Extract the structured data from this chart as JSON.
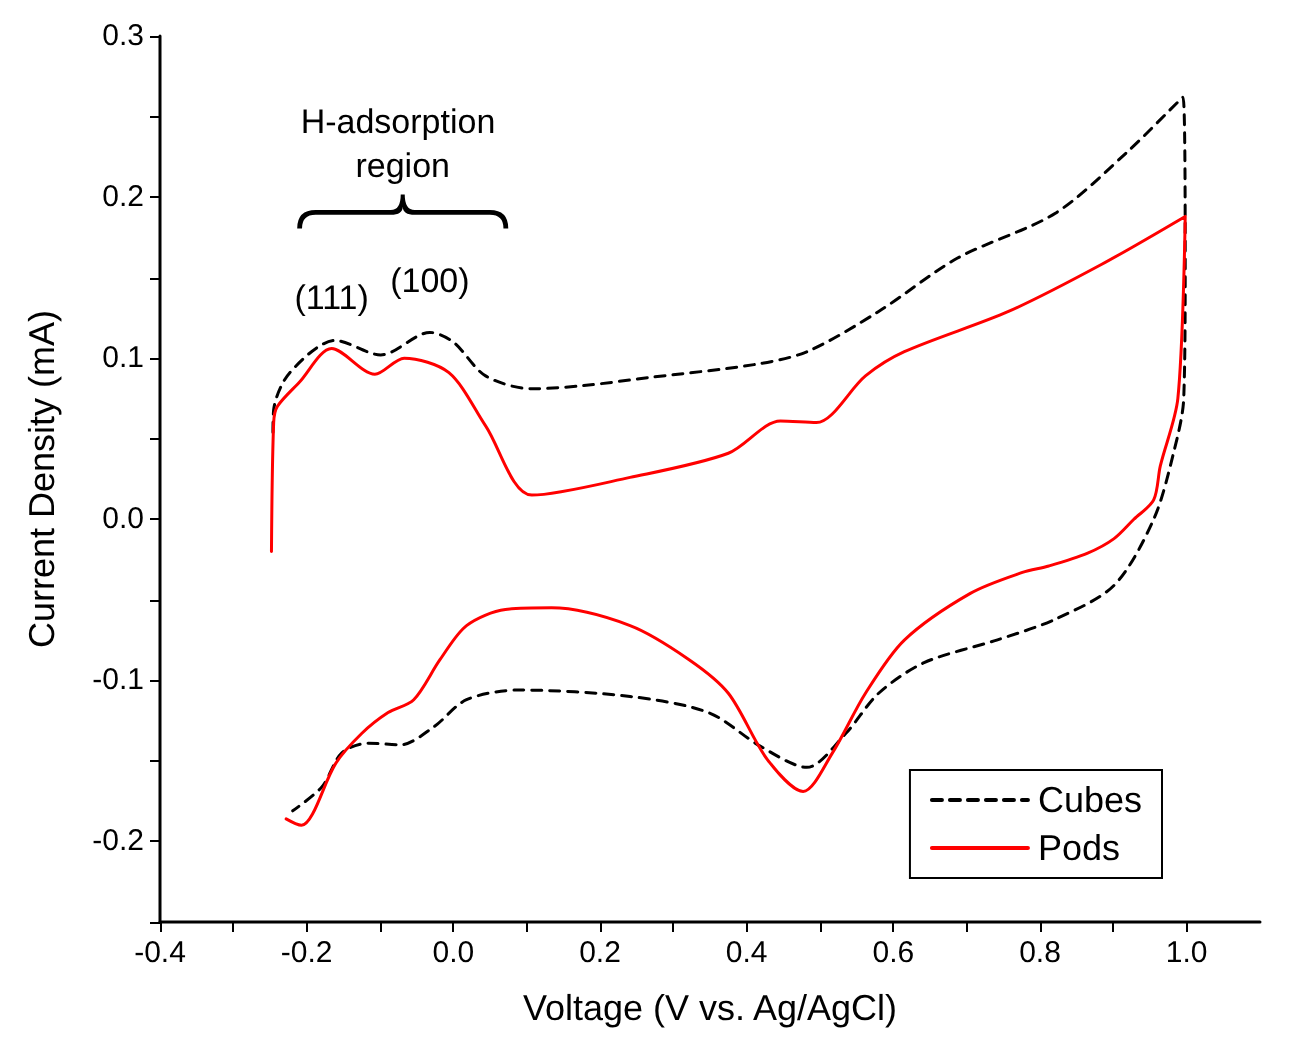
{
  "chart_data": {
    "type": "line",
    "xlabel": "Voltage (V vs. Ag/AgCl)",
    "ylabel": "Current Density (mA)",
    "annotations": [
      "H-adsorption region",
      {
        "text": "(111)",
        "x": -0.166,
        "y": 0.106
      },
      {
        "text": "(100)",
        "x": -0.032,
        "y": 0.116
      }
    ],
    "xlim": [
      -0.4,
      1.1
    ],
    "ylim": [
      -0.25,
      0.3
    ],
    "xticks": [
      -0.4,
      {
        "value": -0.3,
        "label": null
      },
      -0.2,
      {
        "value": -0.1,
        "label": null
      },
      {
        "value": 0,
        "label": "0.0"
      },
      {
        "value": 0.1,
        "label": null
      },
      0.2,
      {
        "value": 0.3,
        "label": null
      },
      0.4,
      {
        "value": 0.5,
        "label": null
      },
      0.6,
      {
        "value": 0.7,
        "label": null
      },
      0.8,
      {
        "value": 0.9,
        "label": null
      },
      {
        "value": 1,
        "label": "1.0"
      }
    ],
    "yticks": [
      {
        "value": -0.25,
        "label": null
      },
      -0.2,
      {
        "value": -0.15,
        "label": null
      },
      -0.1,
      {
        "value": -0.05,
        "label": null
      },
      {
        "value": 0,
        "label": "0.0"
      },
      {
        "value": 0.05,
        "label": null
      },
      0.1,
      {
        "value": 0.15,
        "label": null
      },
      0.2,
      {
        "value": 0.25,
        "label": null
      },
      0.3
    ],
    "grid": false,
    "legend": "bottom right",
    "marker": "none",
    "series": [
      {
        "name": "Cubes",
        "color": "#000000",
        "line_style": "dashed",
        "x": [
          -0.246,
          -0.245,
          -0.223,
          -0.161,
          -0.099,
          -0.032,
          0.0,
          0.044,
          0.107,
          0.178,
          0.267,
          0.41,
          0.482,
          0.58,
          0.687,
          0.821,
          0.919,
          0.995,
          0.998,
          0.996,
          0.982,
          0.955,
          0.901,
          0.821,
          0.741,
          0.642,
          0.58,
          0.535,
          0.482,
          0.419,
          0.348,
          0.241,
          0.089,
          0.018,
          -0.027,
          -0.072,
          -0.116,
          -0.152,
          -0.179,
          -0.219
        ],
        "values": [
          0.054,
          0.068,
          0.091,
          0.111,
          0.102,
          0.116,
          0.11,
          0.089,
          0.081,
          0.083,
          0.088,
          0.096,
          0.104,
          0.129,
          0.162,
          0.19,
          0.228,
          0.262,
          0.158,
          0.075,
          0.041,
          0.0,
          -0.041,
          -0.062,
          -0.075,
          -0.089,
          -0.108,
          -0.133,
          -0.154,
          -0.141,
          -0.12,
          -0.11,
          -0.106,
          -0.112,
          -0.129,
          -0.14,
          -0.139,
          -0.145,
          -0.166,
          -0.181
        ]
      },
      {
        "name": "Pods",
        "color": "#ff0000",
        "line_style": "solid",
        "x": [
          -0.248,
          -0.245,
          -0.24,
          -0.21,
          -0.166,
          -0.107,
          -0.067,
          -0.006,
          0.044,
          0.107,
          0.241,
          0.375,
          0.446,
          0.495,
          0.562,
          0.615,
          0.757,
          0.883,
          0.998,
          0.988,
          0.964,
          0.955,
          0.928,
          0.901,
          0.865,
          0.812,
          0.776,
          0.705,
          0.615,
          0.562,
          0.517,
          0.477,
          0.428,
          0.375,
          0.321,
          0.241,
          0.134,
          0.071,
          0.018,
          -0.018,
          -0.054,
          -0.089,
          -0.125,
          -0.161,
          -0.192,
          -0.207,
          -0.228
        ],
        "values": [
          -0.02,
          0.06,
          0.07,
          0.085,
          0.106,
          0.09,
          0.1,
          0.091,
          0.058,
          0.015,
          0.026,
          0.041,
          0.061,
          0.06,
          0.089,
          0.104,
          0.129,
          0.158,
          0.188,
          0.075,
          0.033,
          0.012,
          0.0,
          -0.012,
          -0.021,
          -0.029,
          -0.033,
          -0.046,
          -0.075,
          -0.108,
          -0.145,
          -0.169,
          -0.149,
          -0.108,
          -0.087,
          -0.066,
          -0.055,
          -0.056,
          -0.066,
          -0.087,
          -0.112,
          -0.12,
          -0.133,
          -0.152,
          -0.183,
          -0.19,
          -0.186
        ]
      }
    ]
  }
}
